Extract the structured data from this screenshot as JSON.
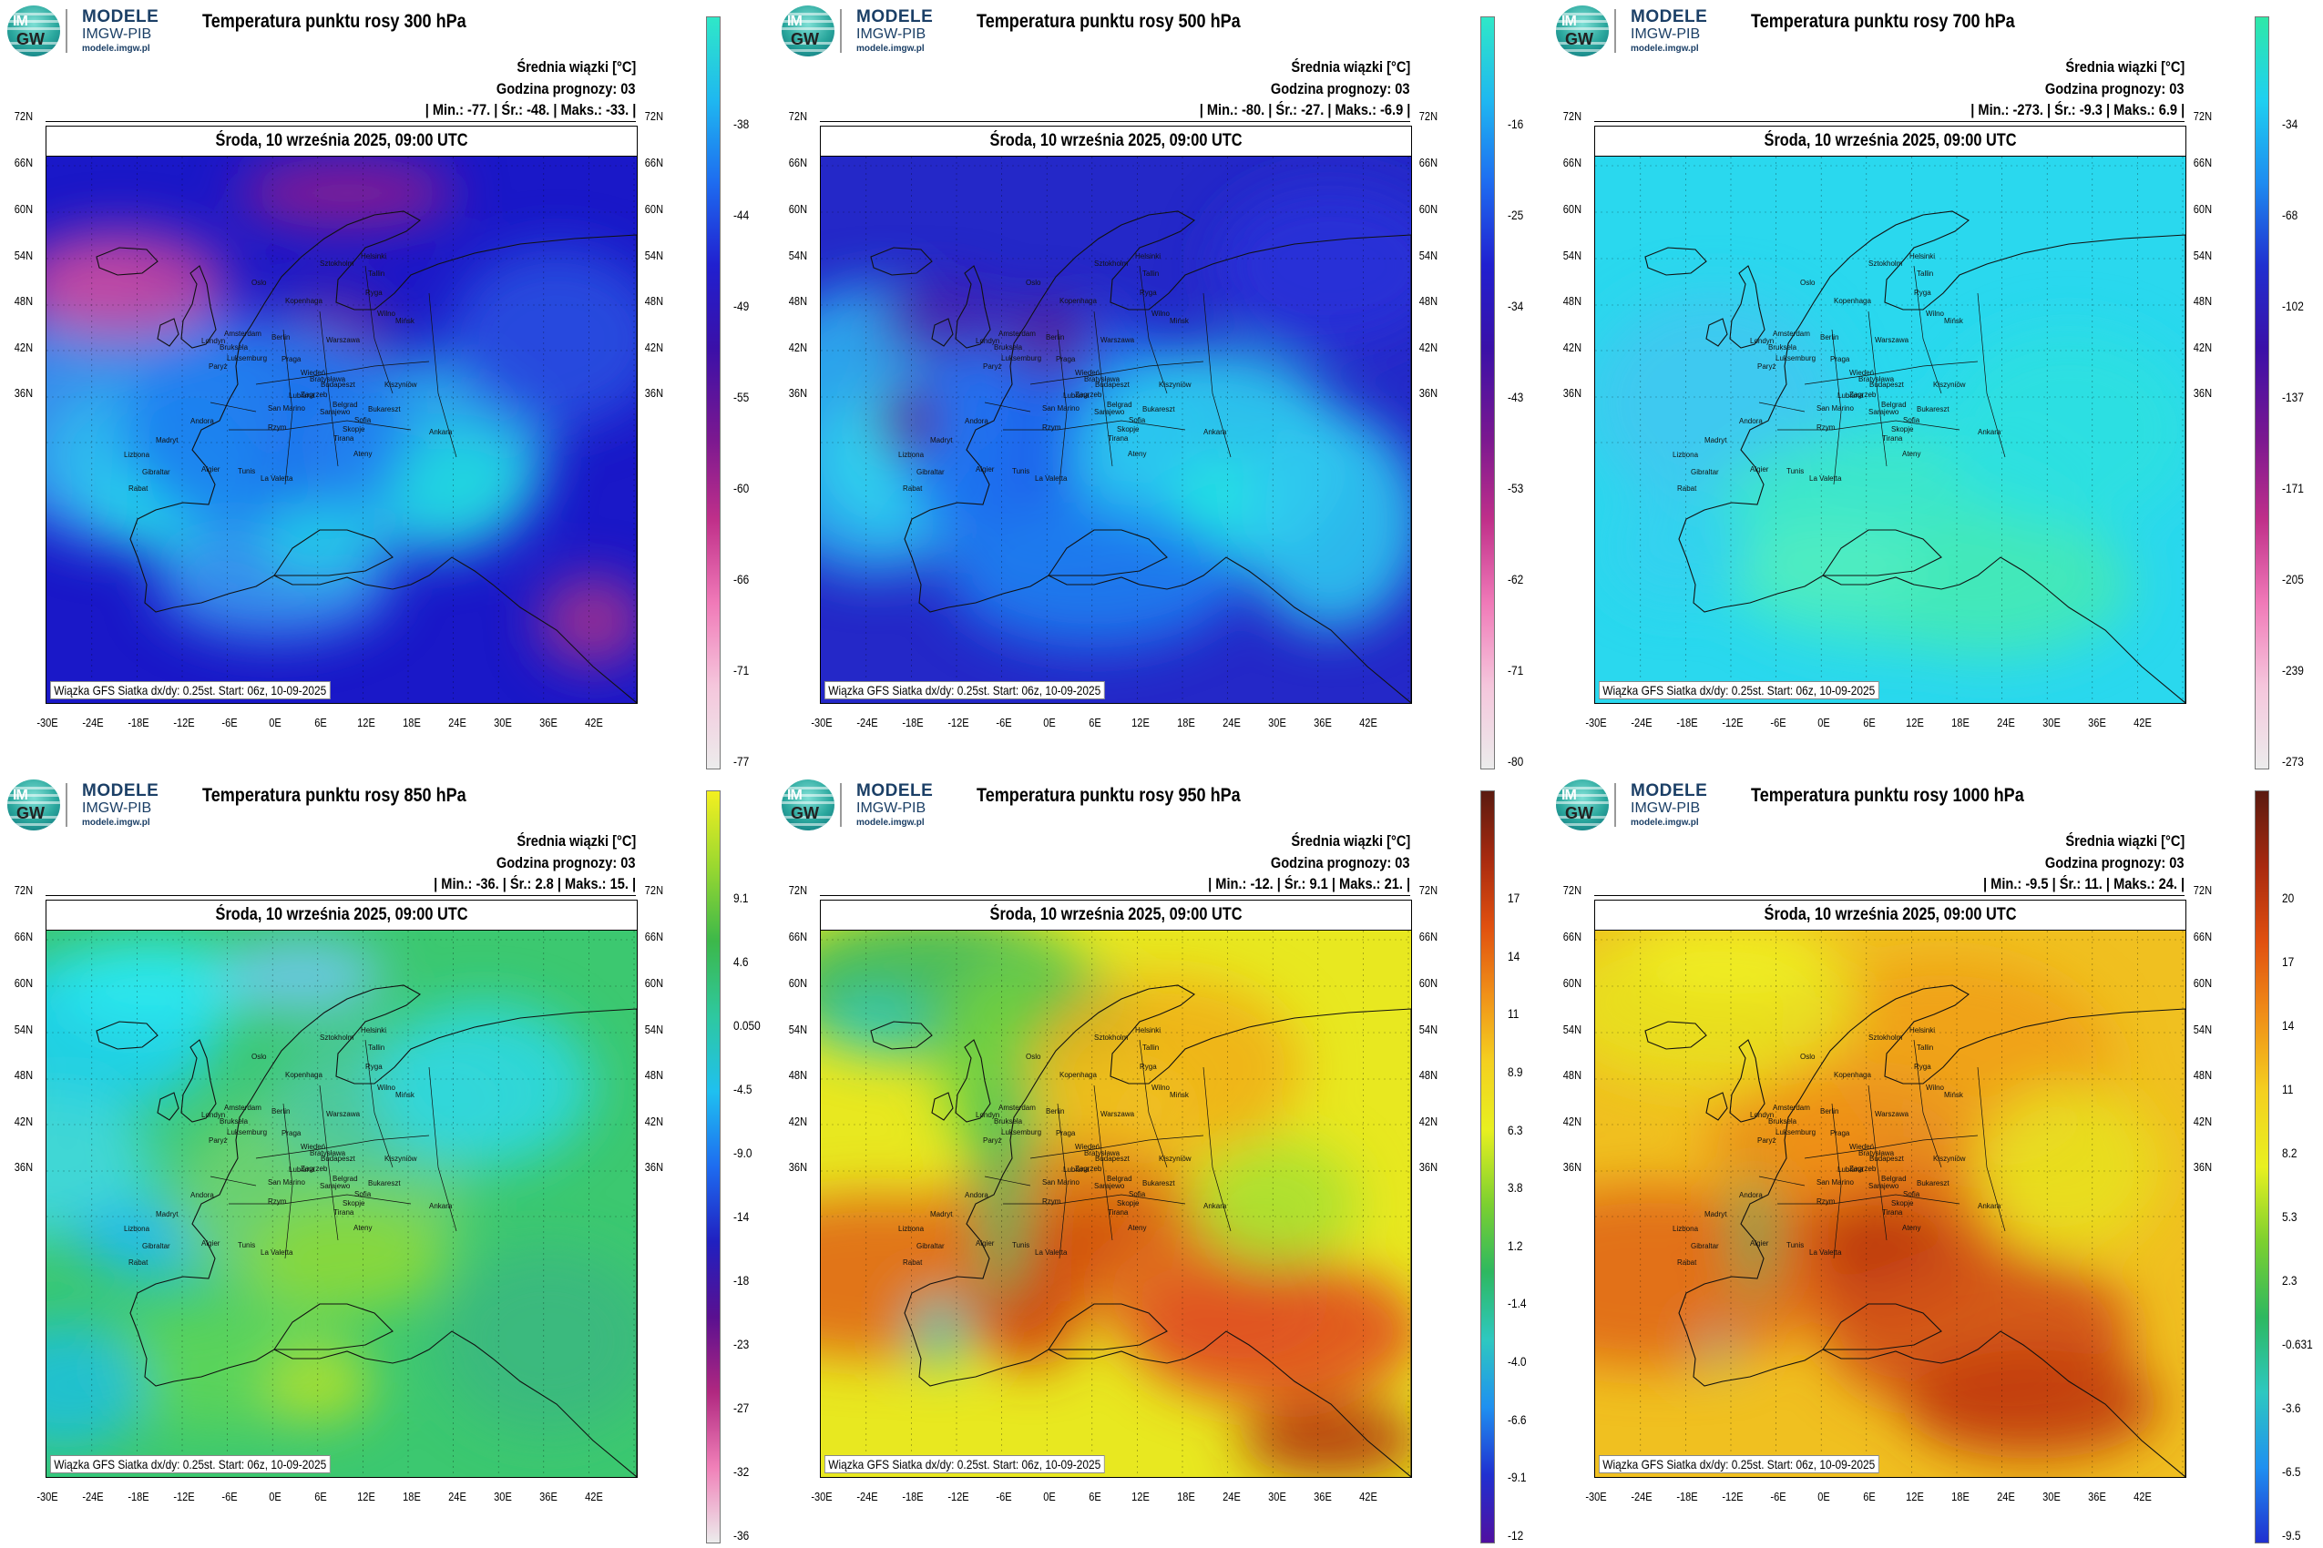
{
  "panels": [
    {
      "logo": {
        "name": "MODELE",
        "org": "IMGW-PIB",
        "url": "modele.imgw.pl",
        "mark_top": "IM",
        "mark_bottom": "GW"
      },
      "title": "Temperatura punktu rosy 300 hPa",
      "ensemble_label": "Średnia wiązki [°C]",
      "forecast_hour": "Godzina prognozy: 03",
      "stats": "| Min.:  -77. | Śr.:  -48. | Maks.:  -33. |",
      "date": "Środa, 10 września 2025, 09:00 UTC",
      "footer": "Wiązka GFS Siatka dx/dy: 0.25st. Start: 06z, 10-09-2025",
      "colorbar_labels": [
        "-38",
        "-44",
        "-49",
        "-55",
        "-60",
        "-66",
        "-71",
        "-77"
      ],
      "colorbar_colors": [
        "#2fe8c8",
        "#1fb8f0",
        "#1e6cf0",
        "#2020d0",
        "#3a10a8",
        "#7a1890",
        "#c0308a",
        "#f07ab8",
        "#f5c6dc",
        "#ececec"
      ],
      "scheme": "cold_300"
    },
    {
      "logo": {
        "name": "MODELE",
        "org": "IMGW-PIB",
        "url": "modele.imgw.pl",
        "mark_top": "IM",
        "mark_bottom": "GW"
      },
      "title": "Temperatura punktu rosy 500 hPa",
      "ensemble_label": "Średnia wiązki [°C]",
      "forecast_hour": "Godzina prognozy: 03",
      "stats": "| Min.:  -80. | Śr.:  -27. | Maks.:  -6.9 |",
      "date": "Środa, 10 września 2025, 09:00 UTC",
      "footer": "Wiązka GFS Siatka dx/dy: 0.25st. Start: 06z, 10-09-2025",
      "colorbar_labels": [
        "-16",
        "-25",
        "-34",
        "-43",
        "-53",
        "-62",
        "-71",
        "-80"
      ],
      "colorbar_colors": [
        "#2fe8c8",
        "#1fb8f0",
        "#1e6cf0",
        "#2020d0",
        "#3a10a8",
        "#7a1890",
        "#c0308a",
        "#f07ab8",
        "#f5c6dc",
        "#ececec"
      ],
      "scheme": "cold_500"
    },
    {
      "logo": {
        "name": "MODELE",
        "org": "IMGW-PIB",
        "url": "modele.imgw.pl",
        "mark_top": "IM",
        "mark_bottom": "GW"
      },
      "title": "Temperatura punktu rosy 700 hPa",
      "ensemble_label": "Średnia wiązki [°C]",
      "forecast_hour": "Godzina prognozy: 03",
      "stats": "| Min.:  -273. | Śr.:  -9.3 | Maks.:  6.9 |",
      "date": "Środa, 10 września 2025, 09:00 UTC",
      "footer": "Wiązka GFS Siatka dx/dy: 0.25st. Start: 06z, 10-09-2025",
      "colorbar_labels": [
        "-34",
        "-68",
        "-102",
        "-137",
        "-171",
        "-205",
        "-239",
        "-273"
      ],
      "colorbar_colors": [
        "#2fe8a8",
        "#1fd0f0",
        "#1e8cf0",
        "#2030d0",
        "#3a10a8",
        "#7a1890",
        "#c0308a",
        "#f07ab8",
        "#f5c6dc",
        "#ececec"
      ],
      "scheme": "cyan_700"
    },
    {
      "logo": {
        "name": "MODELE",
        "org": "IMGW-PIB",
        "url": "modele.imgw.pl",
        "mark_top": "IM",
        "mark_bottom": "GW"
      },
      "title": "Temperatura punktu rosy 850 hPa",
      "ensemble_label": "Średnia wiązki [°C]",
      "forecast_hour": "Godzina prognozy: 03",
      "stats": "| Min.:  -36. | Śr.:  2.8 | Maks.:  15. |",
      "date": "Środa, 10 września 2025, 09:00 UTC",
      "footer": "Wiązka GFS Siatka dx/dy: 0.25st. Start: 06z, 10-09-2025",
      "colorbar_labels": [
        "9.1",
        "4.6",
        "0.050",
        "-4.5",
        "-9.0",
        "-14",
        "-18",
        "-23",
        "-27",
        "-32",
        "-36"
      ],
      "colorbar_colors": [
        "#f4f020",
        "#9ad830",
        "#3cb84a",
        "#2ec8a0",
        "#1fc0f0",
        "#1e6cf0",
        "#2020c0",
        "#5a1090",
        "#b02880",
        "#f080b8",
        "#ececec"
      ],
      "scheme": "mid_850"
    },
    {
      "logo": {
        "name": "MODELE",
        "org": "IMGW-PIB",
        "url": "modele.imgw.pl",
        "mark_top": "IM",
        "mark_bottom": "GW"
      },
      "title": "Temperatura punktu rosy 950 hPa",
      "ensemble_label": "Średnia wiązki [°C]",
      "forecast_hour": "Godzina prognozy: 03",
      "stats": "| Min.:  -12. | Śr.:  9.1 | Maks.:  21. |",
      "date": "Środa, 10 września 2025, 09:00 UTC",
      "footer": "Wiązka GFS Siatka dx/dy: 0.25st. Start: 06z, 10-09-2025",
      "colorbar_labels": [
        "17",
        "14",
        "11",
        "8.9",
        "6.3",
        "3.8",
        "1.2",
        "-1.4",
        "-4.0",
        "-6.6",
        "-9.1",
        "-12"
      ],
      "colorbar_colors": [
        "#5a1a10",
        "#a82a10",
        "#e05010",
        "#f09018",
        "#f4d020",
        "#e8f020",
        "#7cd030",
        "#2eb860",
        "#2ec8c0",
        "#1f90f0",
        "#2030d0",
        "#5010a0"
      ],
      "scheme": "warm_950"
    },
    {
      "logo": {
        "name": "MODELE",
        "org": "IMGW-PIB",
        "url": "modele.imgw.pl",
        "mark_top": "IM",
        "mark_bottom": "GW"
      },
      "title": "Temperatura punktu rosy 1000 hPa",
      "ensemble_label": "Średnia wiązki [°C]",
      "forecast_hour": "Godzina prognozy: 03",
      "stats": "| Min.:  -9.5 | Śr.:  11. | Maks.:  24. |",
      "date": "Środa, 10 września 2025, 09:00 UTC",
      "footer": "Wiązka GFS Siatka dx/dy: 0.25st. Start: 06z, 10-09-2025",
      "colorbar_labels": [
        "20",
        "17",
        "14",
        "11",
        "8.2",
        "5.3",
        "2.3",
        "-0.631",
        "-3.6",
        "-6.5",
        "-9.5"
      ],
      "colorbar_colors": [
        "#5a1a10",
        "#a82a10",
        "#e05010",
        "#f09018",
        "#f4d020",
        "#e8f020",
        "#7cd030",
        "#2eb860",
        "#2ec8c0",
        "#1f90f0",
        "#2030d0"
      ],
      "scheme": "warm_1000"
    }
  ],
  "axes": {
    "latitudes": [
      "72N",
      "66N",
      "60N",
      "54N",
      "48N",
      "42N",
      "36N"
    ],
    "longitudes": [
      "-30E",
      "-24E",
      "-18E",
      "-12E",
      "-6E",
      "0E",
      "6E",
      "12E",
      "18E",
      "24E",
      "30E",
      "36E",
      "42E"
    ]
  },
  "cities": [
    "Oslo",
    "Sztokholm",
    "Helsinki",
    "Tallin",
    "Ryga",
    "Wilno",
    "Mińsk",
    "Kopenhaga",
    "Amsterdam",
    "Berlin",
    "Warszawa",
    "Londyn",
    "Bruksela",
    "Luksemburg",
    "Paryż",
    "Praga",
    "Wiedeń",
    "Bratysława",
    "Budapeszt",
    "Kiszyniów",
    "Zagrzeb",
    "Lublana",
    "Belgrad",
    "Sarajewo",
    "Bukareszt",
    "San Marino",
    "Sofia",
    "Rzym",
    "Skopje",
    "Tirana",
    "Andora",
    "Madryt",
    "Lizbona",
    "Gibraltar",
    "Algier",
    "Tunis",
    "La Valetta",
    "Rabat",
    "Ankara",
    "Ateny"
  ]
}
